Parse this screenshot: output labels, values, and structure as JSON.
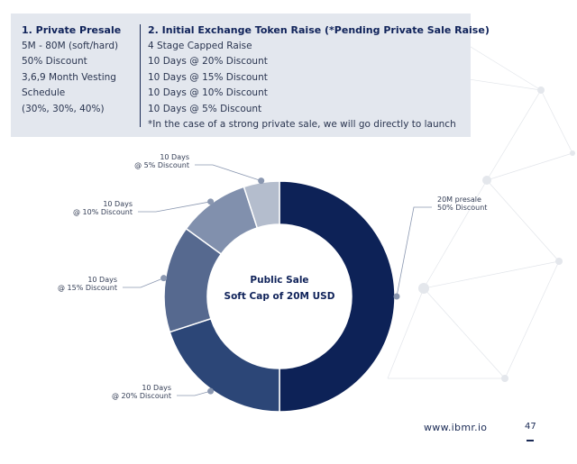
{
  "info": {
    "left": {
      "heading": "1. Private Presale",
      "lines": [
        "5M - 80M (soft/hard)",
        "50% Discount",
        "3,6,9 Month Vesting",
        "Schedule",
        "(30%, 30%, 40%)"
      ]
    },
    "right": {
      "heading": "2. Initial Exchange Token Raise (*Pending Private Sale Raise)",
      "lines": [
        "4 Stage Capped Raise",
        "10 Days @ 20% Discount",
        "10 Days @ 15% Discount",
        "10 Days @ 10% Discount",
        "10 Days @ 5% Discount",
        "*In the case of a strong private sale, we will go directly to launch"
      ]
    }
  },
  "chart_data": {
    "type": "pie",
    "title": "",
    "center_text": [
      "Public Sale",
      "Soft Cap of 20M USD"
    ],
    "slices": [
      {
        "label": [
          "20M presale",
          "50% Discount"
        ],
        "value": 50,
        "color": "#0d2257"
      },
      {
        "label": [
          "10 Days",
          "@ 20% Discount"
        ],
        "value": 20,
        "color": "#2c4677"
      },
      {
        "label": [
          "10 Days",
          "@ 15% Discount"
        ],
        "value": 15,
        "color": "#56698f"
      },
      {
        "label": [
          "10 Days",
          "@ 10% Discount"
        ],
        "value": 10,
        "color": "#8190ad"
      },
      {
        "label": [
          "10 Days",
          "@ 5% Discount"
        ],
        "value": 5,
        "color": "#b4bdcd"
      }
    ]
  },
  "footer": {
    "url": "www.ibmr.io",
    "page": "47"
  }
}
